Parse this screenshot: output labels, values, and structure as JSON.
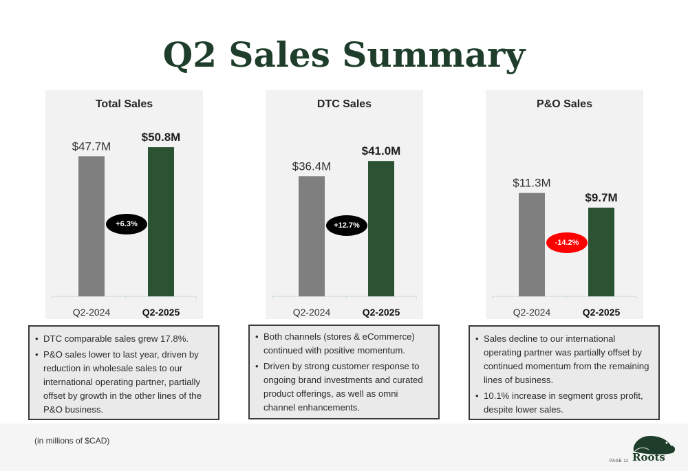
{
  "title": "Q2 Sales Summary",
  "chart_data": [
    {
      "type": "bar",
      "title": "Total Sales",
      "categories": [
        "Q2-2024",
        "Q2-2025"
      ],
      "values": [
        47.7,
        50.8
      ],
      "value_labels": [
        "$47.7M",
        "$50.8M"
      ],
      "change_label": "+6.3%",
      "colors": [
        "#7f7f7f",
        "#2a5233"
      ],
      "badge_color": "#000000"
    },
    {
      "type": "bar",
      "title": "DTC Sales",
      "categories": [
        "Q2-2024",
        "Q2-2025"
      ],
      "values": [
        36.4,
        41.0
      ],
      "value_labels": [
        "$36.4M",
        "$41.0M"
      ],
      "change_label": "+12.7%",
      "colors": [
        "#7f7f7f",
        "#2a5233"
      ],
      "badge_color": "#000000"
    },
    {
      "type": "bar",
      "title": "P&O Sales",
      "categories": [
        "Q2-2024",
        "Q2-2025"
      ],
      "values": [
        11.3,
        9.7
      ],
      "value_labels": [
        "$11.3M",
        "$9.7M"
      ],
      "change_label": "-14.2%",
      "colors": [
        "#7f7f7f",
        "#2a5233"
      ],
      "badge_color": "#ff0000"
    }
  ],
  "notes": [
    [
      "DTC comparable sales grew 17.8%.",
      "P&O sales lower to last year, driven by reduction in wholesale sales to our international operating partner, partially offset by growth in the other lines of the P&O business."
    ],
    [
      "Both channels (stores & eCommerce) continued with positive momentum.",
      "Driven by strong customer response to ongoing brand investments and curated product offerings, as well as omni channel enhancements."
    ],
    [
      "Sales decline to our international operating partner was partially offset by continued momentum from the remaining lines of business.",
      "10.1% increase in segment gross profit, despite lower sales."
    ]
  ],
  "footnote": "(in millions of $CAD)",
  "page_label": "PAGE 11",
  "logo_text": "Roots"
}
